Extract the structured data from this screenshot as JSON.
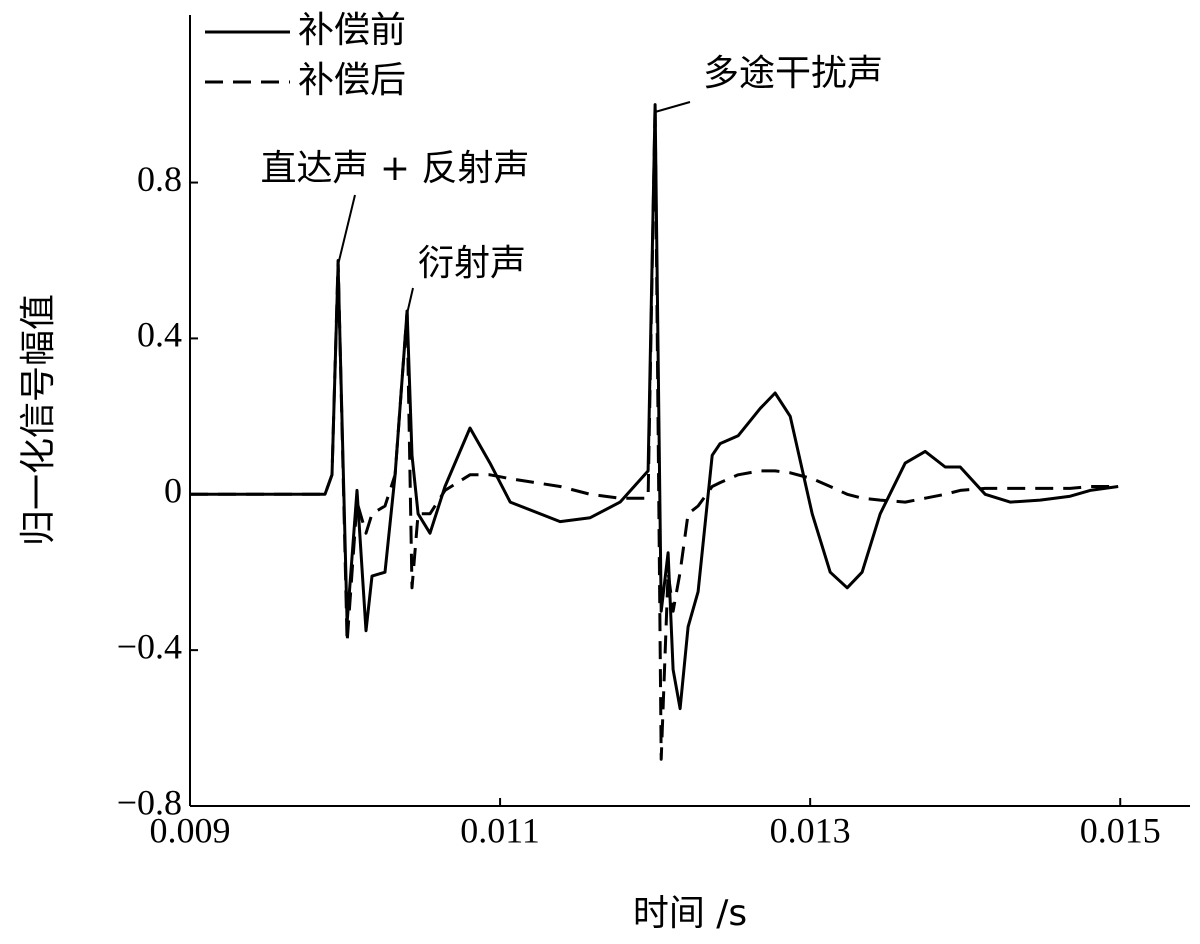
{
  "chart_data": {
    "type": "line",
    "xlabel": "时间 /s",
    "ylabel": "归一化信号幅值",
    "annotations": [
      "直达声 + 反射声",
      "衍射声",
      "多途干扰声"
    ],
    "x": [
      0.009,
      0.009871,
      0.009916,
      0.009955,
      0.010013,
      0.010077,
      0.010135,
      0.010174,
      0.010258,
      0.010323,
      0.0104,
      0.010432,
      0.010471,
      0.010548,
      0.010645,
      0.010806,
      0.010935,
      0.011065,
      0.011387,
      0.011581,
      0.011774,
      0.011955,
      0.012,
      0.012039,
      0.012084,
      0.012116,
      0.012161,
      0.012213,
      0.012277,
      0.012368,
      0.012419,
      0.012535,
      0.012677,
      0.012774,
      0.012871,
      0.013013,
      0.013129,
      0.013239,
      0.013335,
      0.013452,
      0.013613,
      0.013742,
      0.013871,
      0.013968,
      0.014129,
      0.01429,
      0.014484,
      0.014677,
      0.014806,
      0.014987
    ],
    "series": [
      {
        "name": "补偿前",
        "color": "#000000",
        "dash": "solid",
        "values": [
          0,
          0,
          0.05,
          0.59,
          -0.33,
          0.01,
          -0.35,
          -0.21,
          -0.2,
          0.05,
          0.47,
          0.1,
          -0.05,
          -0.1,
          0.02,
          0.17,
          0.08,
          -0.02,
          -0.07,
          -0.06,
          -0.02,
          0.06,
          1.0,
          -0.3,
          -0.15,
          -0.45,
          -0.55,
          -0.34,
          -0.25,
          0.1,
          0.13,
          0.15,
          0.22,
          0.26,
          0.2,
          -0.05,
          -0.2,
          -0.24,
          -0.2,
          -0.05,
          0.08,
          0.11,
          0.07,
          0.07,
          0,
          -0.02,
          -0.015,
          -0.005,
          0.01,
          0.02
        ]
      },
      {
        "name": "补偿后",
        "color": "#000000",
        "dash": "dashed",
        "values": [
          0,
          0,
          0.05,
          0.6,
          -0.38,
          -0.02,
          -0.1,
          -0.05,
          -0.03,
          0.05,
          0.47,
          -0.24,
          -0.05,
          -0.05,
          0.01,
          0.05,
          0.05,
          0.04,
          0.02,
          0,
          -0.01,
          -0.01,
          1.0,
          -0.68,
          -0.2,
          -0.3,
          -0.2,
          -0.05,
          -0.03,
          0.02,
          0.03,
          0.05,
          0.06,
          0.06,
          0.055,
          0.04,
          0.02,
          0,
          -0.01,
          -0.015,
          -0.02,
          -0.01,
          0,
          0.01,
          0.015,
          0.015,
          0.015,
          0.015,
          0.02,
          0.02
        ]
      }
    ],
    "xlim": [
      0.009,
      0.01545
    ],
    "ylim": [
      -0.8,
      1.23
    ],
    "xticks": [
      0.009,
      0.011,
      0.013,
      0.015
    ],
    "yticks": [
      {
        "value": -0.8,
        "label": "−0.8"
      },
      {
        "value": -0.4,
        "label": "−0.4"
      },
      0,
      0.4,
      0.8
    ],
    "grid": false,
    "legend": "upper left"
  }
}
